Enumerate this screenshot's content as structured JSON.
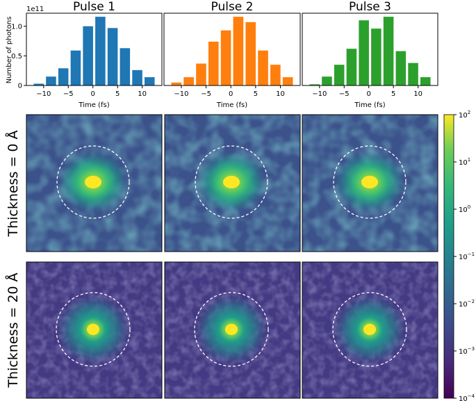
{
  "chart_data": [
    {
      "type": "bar",
      "title": "Pulse 1",
      "xlabel": "Time (fs)",
      "ylabel": "Number of photons",
      "y_exponent_label": "1e11",
      "x": [
        -11,
        -8.5,
        -6,
        -3.5,
        -1,
        1.5,
        4,
        6.5,
        9,
        11.5
      ],
      "values": [
        0.03,
        0.15,
        0.29,
        0.59,
        1.0,
        1.16,
        0.97,
        0.63,
        0.26,
        0.14
      ],
      "xticks": [
        -10,
        -5,
        0,
        5,
        10
      ],
      "yticks": [
        0,
        0.5,
        1.0
      ],
      "ytick_labels": [
        "0",
        "0.5",
        "1.0"
      ],
      "xlim": [
        -13.5,
        14
      ],
      "ylim": [
        0,
        1.22
      ],
      "color": "#1f77b4"
    },
    {
      "type": "bar",
      "title": "Pulse 2",
      "xlabel": "Time (fs)",
      "x": [
        -11,
        -8.5,
        -6,
        -3.5,
        -1,
        1.5,
        4,
        6.5,
        9,
        11.5
      ],
      "values": [
        0.05,
        0.14,
        0.37,
        0.74,
        0.93,
        1.16,
        1.07,
        0.59,
        0.35,
        0.14
      ],
      "xticks": [
        -10,
        -5,
        0,
        5,
        10
      ],
      "xlim": [
        -13.5,
        14
      ],
      "ylim": [
        0,
        1.22
      ],
      "color": "#ff7f0e"
    },
    {
      "type": "bar",
      "title": "Pulse 3",
      "xlabel": "Time (fs)",
      "x": [
        -11,
        -8.5,
        -6,
        -3.5,
        -1,
        1.5,
        4,
        6.5,
        9,
        11.5
      ],
      "values": [
        0.02,
        0.15,
        0.35,
        0.62,
        1.1,
        0.96,
        1.16,
        0.58,
        0.38,
        0.14
      ],
      "xticks": [
        -10,
        -5,
        0,
        5,
        10
      ],
      "xlim": [
        -13.5,
        14
      ],
      "ylim": [
        0,
        1.22
      ],
      "color": "#2ca02c"
    },
    {
      "type": "heatmap",
      "description_rows": [
        "Thickness = 0 Å",
        "Thickness = 20 Å"
      ],
      "rows": [
        {
          "label": "Thickness = 0 Å",
          "panels": [
            "Pulse 1",
            "Pulse 2",
            "Pulse 3"
          ],
          "colormap": "viridis",
          "log_scale": true
        },
        {
          "label": "Thickness = 20 Å",
          "panels": [
            "Pulse 1",
            "Pulse 2",
            "Pulse 3"
          ],
          "colormap": "viridis",
          "log_scale": true
        }
      ],
      "colorbar": {
        "scale": "log",
        "range": [
          0.0001,
          100
        ],
        "ticks": [
          {
            "base": "10",
            "exp": "2",
            "value": 100
          },
          {
            "base": "10",
            "exp": "1",
            "value": 10
          },
          {
            "base": "10",
            "exp": "0",
            "value": 1
          },
          {
            "base": "10",
            "exp": "−1",
            "value": 0.1
          },
          {
            "base": "10",
            "exp": "−2",
            "value": 0.01
          },
          {
            "base": "10",
            "exp": "−3",
            "value": 0.001
          },
          {
            "base": "10",
            "exp": "−4",
            "value": 0.0001
          }
        ]
      },
      "overlay": "dashed white circle around the central peak"
    }
  ]
}
